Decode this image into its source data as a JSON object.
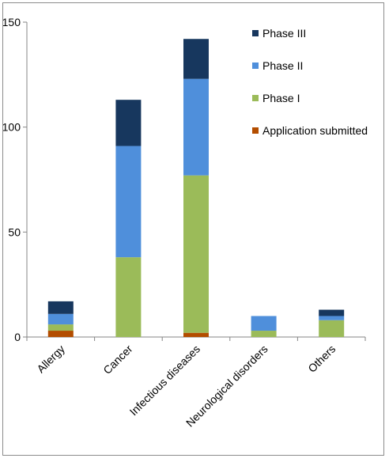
{
  "chart_data": {
    "type": "bar",
    "stacked": true,
    "categories": [
      "Allergy",
      "Cancer",
      "Infectious diseases",
      "Neurological disorders",
      "Others"
    ],
    "series": [
      {
        "name": "Application submitted",
        "color": "#b34d00",
        "values": [
          3,
          0,
          2,
          0,
          0
        ]
      },
      {
        "name": "Phase I",
        "color": "#9bbb59",
        "values": [
          3,
          38,
          75,
          3,
          8
        ]
      },
      {
        "name": "Phase II",
        "color": "#4f8fdb",
        "values": [
          5,
          53,
          46,
          7,
          2
        ]
      },
      {
        "name": "Phase III",
        "color": "#17375e",
        "values": [
          6,
          22,
          19,
          0,
          3
        ]
      }
    ],
    "ylim": [
      0,
      150
    ],
    "yticks": [
      0,
      50,
      100,
      150
    ],
    "grid": false,
    "legend_position": "top-right",
    "legend_order": [
      "Phase III",
      "Phase II",
      "Phase I",
      "Application submitted"
    ]
  }
}
